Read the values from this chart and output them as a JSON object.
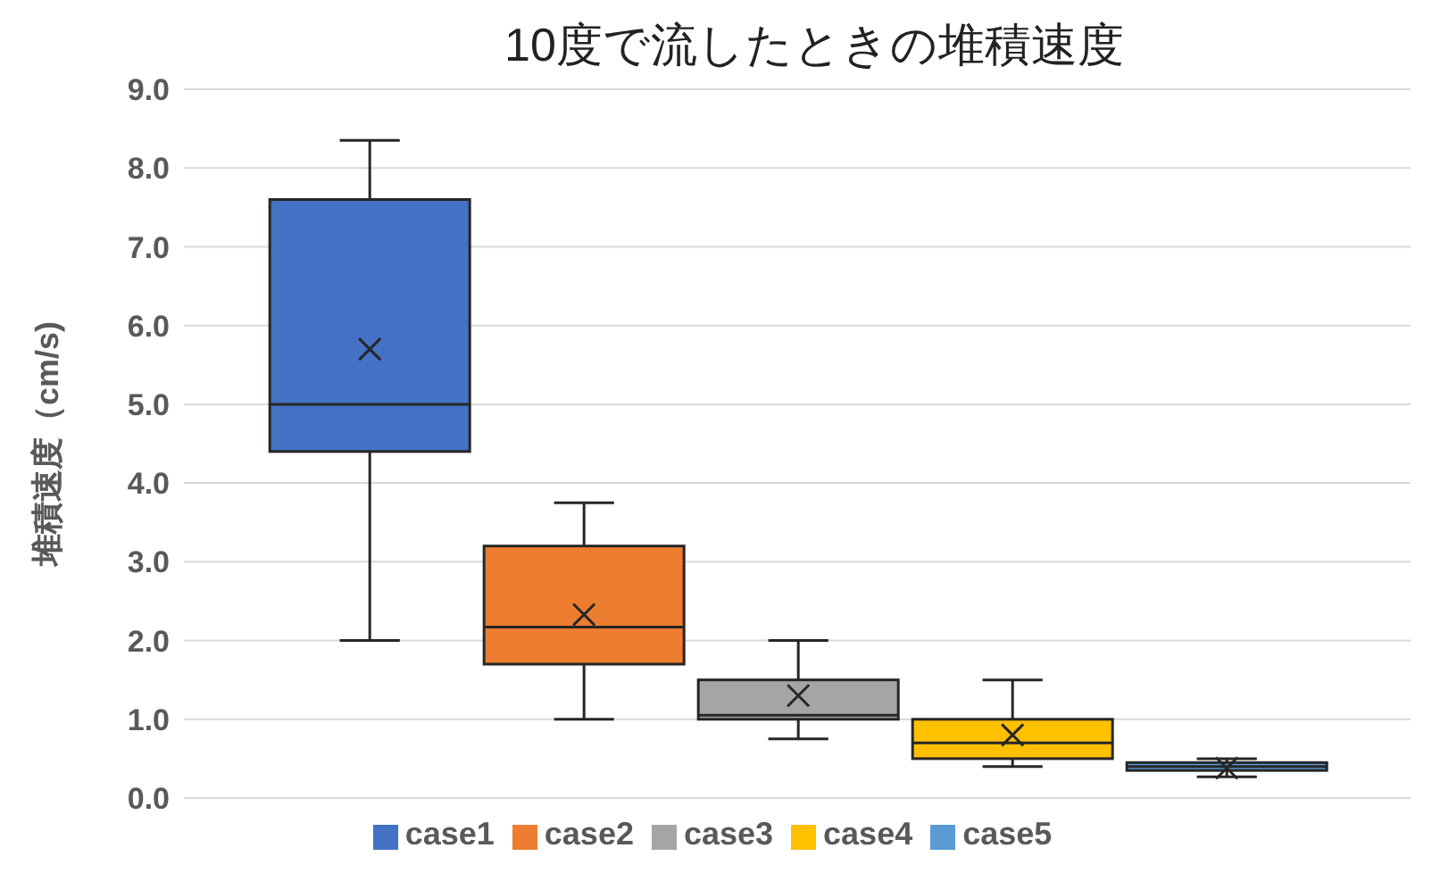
{
  "chart_data": {
    "type": "box",
    "title": "10度で流したときの堆積速度",
    "ylabel": "堆積速度（cm/s)",
    "categories": [
      null
    ],
    "series": [
      {
        "name": "case1",
        "color": "#4472c4",
        "boxes": [
          {
            "low": 2.0,
            "q1": 4.4,
            "median": 5.0,
            "q3": 7.6,
            "high": 8.35,
            "mean": 5.7
          }
        ]
      },
      {
        "name": "case2",
        "color": "#ed7d31",
        "boxes": [
          {
            "low": 1.0,
            "q1": 1.7,
            "median": 2.17,
            "q3": 3.2,
            "high": 3.75,
            "mean": 2.33
          }
        ]
      },
      {
        "name": "case3",
        "color": "#a5a5a5",
        "boxes": [
          {
            "low": 0.75,
            "q1": 1.0,
            "median": 1.05,
            "q3": 1.5,
            "high": 2.0,
            "mean": 1.3
          }
        ]
      },
      {
        "name": "case4",
        "color": "#ffc000",
        "boxes": [
          {
            "low": 0.4,
            "q1": 0.5,
            "median": 0.7,
            "q3": 1.0,
            "high": 1.5,
            "mean": 0.8
          }
        ]
      },
      {
        "name": "case5",
        "color": "#5b9bd5",
        "boxes": [
          {
            "low": 0.27,
            "q1": 0.35,
            "median": 0.4,
            "q3": 0.45,
            "high": 0.5,
            "mean": 0.38
          }
        ]
      }
    ],
    "ylim": [
      0,
      9
    ],
    "yticks": [
      {
        "value": 0,
        "label": "0.0"
      },
      {
        "value": 1,
        "label": "1.0"
      },
      {
        "value": 2,
        "label": "2.0"
      },
      {
        "value": 3,
        "label": "3.0"
      },
      {
        "value": 4,
        "label": "4.0"
      },
      {
        "value": 5,
        "label": "5.0"
      },
      {
        "value": 6,
        "label": "6.0"
      },
      {
        "value": 7,
        "label": "7.0"
      },
      {
        "value": 8,
        "label": "8.0"
      },
      {
        "value": 9,
        "label": "9.0"
      }
    ],
    "grid": "y",
    "legend": "bottom"
  }
}
